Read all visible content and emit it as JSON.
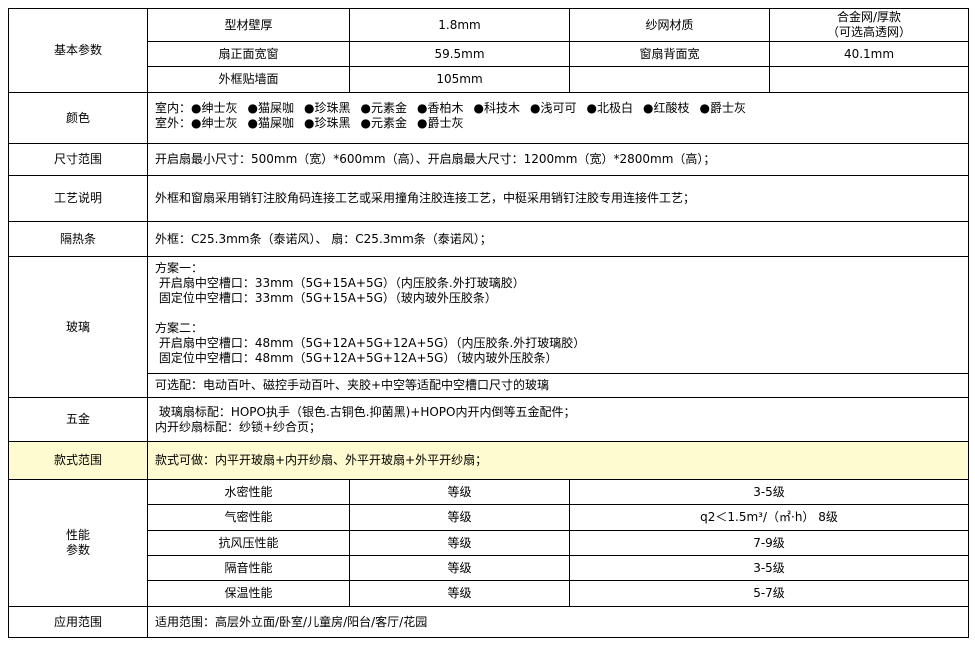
{
  "basic": {
    "label": "基本参数",
    "rows": [
      [
        "型材壁厚",
        "1.8mm",
        "纱网材质",
        "合金网/厚款",
        "（可选高透网）"
      ],
      [
        "扇正面宽窗",
        "59.5mm",
        "窗扇背面宽",
        "40.1mm"
      ],
      [
        "外框贴墙面",
        "105mm"
      ]
    ]
  },
  "color": {
    "label": "颜色",
    "indoor_label": "室内：",
    "indoor": [
      "绅士灰",
      "猫屎咖",
      "珍珠黑",
      "元素金",
      "香柏木",
      "科技木",
      "浅可可",
      "北极白",
      "红酸枝",
      "爵士灰"
    ],
    "outdoor_label": "室外：",
    "outdoor": [
      "绅士灰",
      "猫屎咖",
      "珍珠黑",
      "元素金",
      "爵士灰"
    ]
  },
  "size": {
    "label": "尺寸范围",
    "text": "开启扇最小尺寸：500mm（宽）*600mm（高）、开启扇最大尺寸：1200mm（宽）*2800mm（高）；"
  },
  "process": {
    "label": "工艺说明",
    "text": "外框和窗扇采用销钉注胶角码连接工艺或采用撞角注胶连接工艺，中梃采用销钉注胶专用连接件工艺；"
  },
  "insulation": {
    "label": "隔热条",
    "text": "外框：C25.3mm条（泰诺风）、 扇：C25.3mm条（泰诺风）；"
  },
  "glass": {
    "label": "玻璃",
    "lines": [
      "方案一：",
      " 开启扇中空槽口：33mm（5G+15A+5G）（内压胶条.外打玻璃胶）",
      " 固定位中空槽口：33mm（5G+15A+5G）（玻内玻外压胶条）",
      "",
      "方案二：",
      " 开启扇中空槽口：48mm（5G+12A+5G+12A+5G）（内压胶条.外打玻璃胶）",
      " 固定位中空槽口：48mm（5G+12A+5G+12A+5G）（玻内玻外压胶条）"
    ],
    "optional": "可选配：电动百叶、磁控手动百叶、夹胶+中空等适配中空槽口尺寸的玻璃"
  },
  "hardware": {
    "label": "五金",
    "lines": [
      " 玻璃扇标配：HOPO执手（银色.古铜色.抑菌黑)+HOPO内开内倒等五金配件；",
      "内开纱扇标配：纱锁+纱合页；"
    ]
  },
  "style": {
    "label": "款式范围",
    "text": "款式可做：内平开玻扇+内开纱扇、外平开玻扇+外平开纱扇；",
    "highlight": "#fffbd0"
  },
  "performance": {
    "label1": "性能",
    "label2": "参数",
    "rows": [
      [
        "水密性能",
        "等级",
        "3-5级"
      ],
      [
        "气密性能",
        "等级",
        "q2＜1.5m³/（㎡·h） 8级"
      ],
      [
        "抗风压性能",
        "等级",
        "7-9级"
      ],
      [
        "隔音性能",
        "等级",
        "3-5级"
      ],
      [
        "保温性能",
        "等级",
        "5-7级"
      ]
    ]
  },
  "application": {
    "label": "应用范围",
    "text": "适用范围：高层外立面/卧室/儿童房/阳台/客厅/花园"
  }
}
